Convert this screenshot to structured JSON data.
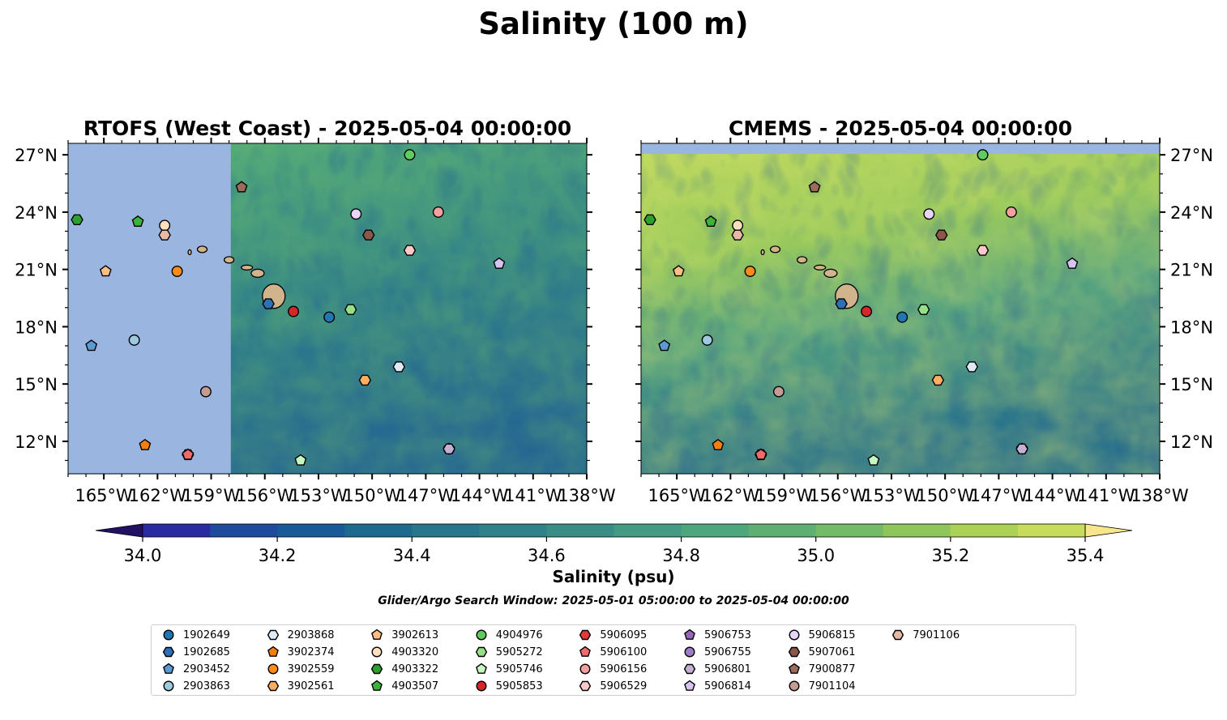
{
  "figure_title": "Salinity (100 m)",
  "colors": {
    "land": "#d2b48c",
    "nodata": "#9ab6e0",
    "colormap": [
      "#241063",
      "#2a2aa1",
      "#1e4b9c",
      "#185a98",
      "#1d6a8e",
      "#27768b",
      "#2f818a",
      "#3a8d86",
      "#449a83",
      "#4ea67c",
      "#5db072",
      "#73bb66",
      "#8fc65b",
      "#acd157",
      "#c7dc5d",
      "#f8e68c"
    ]
  },
  "panels": [
    {
      "title": "RTOFS (West Coast) - 2025-05-04 00:00:00",
      "ytick_side": "left"
    },
    {
      "title": "CMEMS - 2025-05-04 00:00:00",
      "ytick_side": "right"
    }
  ],
  "colorbar": {
    "label": "Salinity (psu)",
    "ticks": [
      "34.0",
      "34.2",
      "34.4",
      "34.6",
      "34.8",
      "35.0",
      "35.2",
      "35.4"
    ],
    "min": 34.0,
    "max": 35.4,
    "step": 0.1
  },
  "note": "Glider/Argo Search Window: 2025-05-01 05:00:00 to 2025-05-04 00:00:00",
  "chart_data": {
    "type": "scatter",
    "title": "Salinity (100 m)",
    "xlim": [
      -167.0,
      -138.0
    ],
    "ylim": [
      10.3,
      27.6
    ],
    "xticks": [
      -165,
      -162,
      -159,
      -156,
      -153,
      -150,
      -147,
      -144,
      -141,
      -138
    ],
    "xtick_labels": [
      "165°W",
      "162°W",
      "159°W",
      "156°W",
      "153°W",
      "150°W",
      "147°W",
      "144°W",
      "141°W",
      "138°W"
    ],
    "yticks": [
      12,
      15,
      18,
      21,
      24,
      27
    ],
    "ytick_labels": [
      "12°N",
      "15°N",
      "18°N",
      "21°N",
      "24°N",
      "27°N"
    ],
    "rtofs_data_start_lon": -157.9,
    "colorbar_range": [
      34.0,
      35.4
    ],
    "series": [
      {
        "name": "1902649",
        "color": "#1f77b4",
        "marker": "circle",
        "lon": -152.4,
        "lat": 18.5
      },
      {
        "name": "1902685",
        "color": "#2f6fb5",
        "marker": "hexagon",
        "lon": -155.8,
        "lat": 19.2
      },
      {
        "name": "2903452",
        "color": "#5a9bd5",
        "marker": "pentagon",
        "lon": -165.7,
        "lat": 17.0
      },
      {
        "name": "2903863",
        "color": "#9ecae1",
        "marker": "circle",
        "lon": -163.3,
        "lat": 17.3
      },
      {
        "name": "2903868",
        "color": "#deebf7",
        "marker": "hexagon",
        "lon": -148.5,
        "lat": 15.9
      },
      {
        "name": "3902374",
        "color": "#f57f0e",
        "marker": "pentagon",
        "lon": -162.7,
        "lat": 11.8
      },
      {
        "name": "3902559",
        "color": "#ff8b1a",
        "marker": "circle",
        "lon": -160.9,
        "lat": 20.9
      },
      {
        "name": "3902561",
        "color": "#fdae61",
        "marker": "hexagon",
        "lon": -150.4,
        "lat": 15.2
      },
      {
        "name": "3902613",
        "color": "#fdbe85",
        "marker": "pentagon",
        "lon": -164.9,
        "lat": 20.9
      },
      {
        "name": "4903320",
        "color": "#fde0c0",
        "marker": "circle",
        "lon": -161.6,
        "lat": 23.3
      },
      {
        "name": "4903322",
        "color": "#2ca02c",
        "marker": "hexagon",
        "lon": -166.5,
        "lat": 23.6
      },
      {
        "name": "4903507",
        "color": "#3bb33b",
        "marker": "pentagon",
        "lon": -163.1,
        "lat": 23.5
      },
      {
        "name": "4904976",
        "color": "#5fcc5f",
        "marker": "circle",
        "lon": -147.9,
        "lat": 27.0
      },
      {
        "name": "5905272",
        "color": "#98df8a",
        "marker": "hexagon",
        "lon": -151.2,
        "lat": 18.9
      },
      {
        "name": "5905746",
        "color": "#c7f7c0",
        "marker": "pentagon",
        "lon": -154.0,
        "lat": 11.0
      },
      {
        "name": "5905853",
        "color": "#d62728",
        "marker": "circle",
        "lon": -154.4,
        "lat": 18.8
      },
      {
        "name": "5906095",
        "color": "#e0393a",
        "marker": "hexagon",
        "lon": -160.3,
        "lat": 11.3
      },
      {
        "name": "5906100",
        "color": "#ef6a6a",
        "marker": "pentagon",
        "lon": -160.3,
        "lat": 11.3
      },
      {
        "name": "5906156",
        "color": "#f4a0a0",
        "marker": "circle",
        "lon": -146.3,
        "lat": 24.0
      },
      {
        "name": "5906529",
        "color": "#fcc8c8",
        "marker": "hexagon",
        "lon": -147.9,
        "lat": 22.0
      },
      {
        "name": "5906753",
        "color": "#9467bd",
        "marker": "pentagon",
        "lon": -145.7,
        "lat": 11.6
      },
      {
        "name": "5906755",
        "color": "#a07cc8",
        "marker": "circle",
        "lon": -145.7,
        "lat": 11.6
      },
      {
        "name": "5906801",
        "color": "#c5b0d5",
        "marker": "hexagon",
        "lon": -145.7,
        "lat": 11.6
      },
      {
        "name": "5906814",
        "color": "#d8c3f0",
        "marker": "pentagon",
        "lon": -142.9,
        "lat": 21.3
      },
      {
        "name": "5906815",
        "color": "#e9d5fb",
        "marker": "circle",
        "lon": -150.9,
        "lat": 23.9
      },
      {
        "name": "5907061",
        "color": "#8c564b",
        "marker": "hexagon",
        "lon": -150.2,
        "lat": 22.8
      },
      {
        "name": "7900877",
        "color": "#9c6b5a",
        "marker": "pentagon",
        "lon": -157.3,
        "lat": 25.3
      },
      {
        "name": "7901104",
        "color": "#c49c94",
        "marker": "circle",
        "lon": -159.3,
        "lat": 14.6
      },
      {
        "name": "7901106",
        "color": "#e7b9a8",
        "marker": "hexagon",
        "lon": -161.6,
        "lat": 22.8
      }
    ]
  }
}
